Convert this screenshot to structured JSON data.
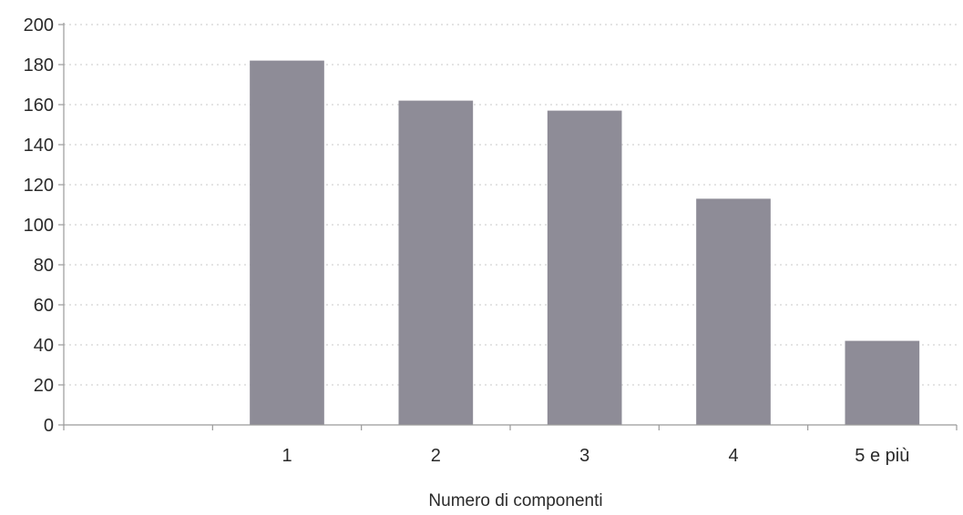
{
  "chart_data": {
    "type": "bar",
    "categories": [
      "",
      "1",
      "2",
      "3",
      "4",
      "5 e più"
    ],
    "values": [
      0,
      182,
      162,
      157,
      113,
      42
    ],
    "xlabel": "Numero di componenti",
    "ylabel": "",
    "ylim": [
      0,
      200
    ],
    "yticks": [
      0,
      20,
      40,
      60,
      80,
      100,
      120,
      140,
      160,
      180,
      200
    ],
    "grid": true,
    "legend": "none",
    "bar_color": "#8e8c97"
  }
}
